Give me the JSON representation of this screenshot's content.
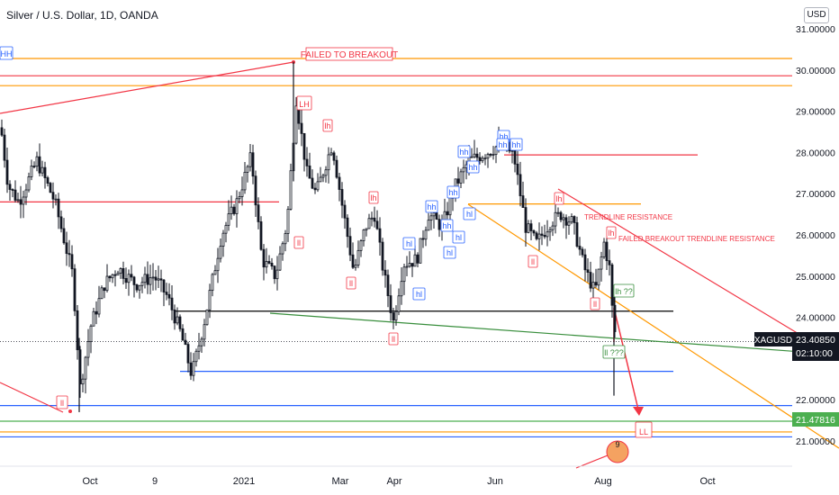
{
  "header": {
    "symbol_title": "Silver / U.S. Dollar, 1D, OANDA",
    "currency_label": "USD"
  },
  "chart_data": {
    "type": "candlestick",
    "title": "Silver / U.S. Dollar, 1D, OANDA",
    "y_axis": {
      "ticks": [
        "31.00000",
        "30.00000",
        "29.00000",
        "28.00000",
        "27.00000",
        "26.00000",
        "25.00000",
        "24.00000",
        "22.00000",
        "21.00000"
      ],
      "range": [
        20.5,
        31.5
      ],
      "position": "right"
    },
    "x_axis": {
      "ticks": [
        "Oct",
        "9",
        "2021",
        "Mar",
        "Apr",
        "Jun",
        "Aug",
        "Oct"
      ]
    },
    "price_labels": {
      "symbol": "XAGUSD",
      "last_price": "23.40850",
      "countdown": "02:10:00",
      "level_label": "21.47816"
    },
    "horizontal_levels": [
      {
        "price": 30.28,
        "color": "#ff9800"
      },
      {
        "price": 29.86,
        "color": "#f23645"
      },
      {
        "price": 29.62,
        "color": "#ff9800"
      },
      {
        "price": 26.8,
        "color": "#f23645"
      },
      {
        "price": 27.94,
        "color": "#f23645"
      },
      {
        "price": 26.75,
        "color": "#ff9800"
      },
      {
        "price": 24.15,
        "color": "#000000"
      },
      {
        "price": 22.69,
        "color": "#2962ff"
      },
      {
        "price": 21.86,
        "color": "#2962ff"
      },
      {
        "price": 21.48,
        "color": "#4caf50"
      },
      {
        "price": 21.22,
        "color": "#ff9800"
      },
      {
        "price": 21.1,
        "color": "#2962ff"
      }
    ],
    "trendlines": [
      {
        "name": "red upper",
        "color": "#f23645"
      },
      {
        "name": "trendline resistance",
        "color": "#f23645"
      },
      {
        "name": "orange channel",
        "color": "#ff9800"
      },
      {
        "name": "green support",
        "color": "#388e3c"
      },
      {
        "name": "black support",
        "color": "#000000"
      }
    ],
    "annotations": [
      {
        "text": "FAILED TO BREAKOUT",
        "color": "#f23645"
      },
      {
        "text": "TRENDLINE RESISTANCE",
        "color": "#f23645"
      },
      {
        "text": "FAILED BREAKOUT TRENDLINE RESISTANCE",
        "color": "#f23645"
      },
      {
        "text": "HH",
        "color": "#2962ff"
      },
      {
        "text": "LH",
        "color": "#f23645"
      },
      {
        "text": "lh",
        "color": "#f23645"
      },
      {
        "text": "ll",
        "color": "#f23645"
      },
      {
        "text": "lh ??",
        "color": "#388e3c"
      },
      {
        "text": "ll ???",
        "color": "#388e3c"
      },
      {
        "text": "LL",
        "color": "#f23645"
      },
      {
        "text": "hh",
        "color": "#2962ff"
      },
      {
        "text": "hl",
        "color": "#2962ff"
      },
      {
        "text": "9",
        "color": "#131722"
      }
    ],
    "grid": false
  },
  "colors": {
    "up_candle": "#131722",
    "down_candle": "#131722",
    "accent_red": "#f23645",
    "accent_green": "#4caf50",
    "accent_blue": "#2962ff",
    "accent_orange": "#ff9800"
  }
}
